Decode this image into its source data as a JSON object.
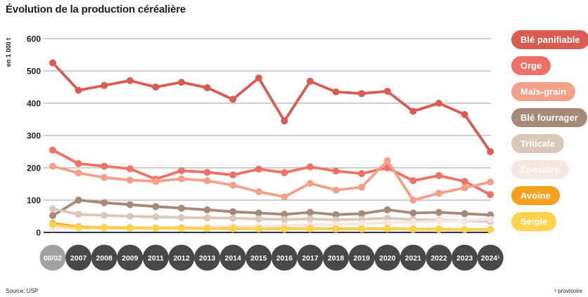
{
  "title": "Évolution de la production céréalière",
  "y_axis": {
    "unit": "en 1 000 t",
    "ticks": [
      0,
      100,
      200,
      300,
      400,
      500,
      600
    ]
  },
  "footer": {
    "source": "Source: USP",
    "note": "¹ provisoire"
  },
  "colors": {
    "grid": "#b5b5b5",
    "zero_axis": "#30325a",
    "tick_text": "#1d1d1b",
    "badge": "#484848",
    "badge_first": "#a2a2a2",
    "badge_text": "#ffffff"
  },
  "chart_data": {
    "type": "line",
    "title": "Évolution de la production céréalière",
    "xlabel": "",
    "ylabel": "en 1 000 t",
    "ylim": [
      0,
      600
    ],
    "grid": "horizontal",
    "legend_position": "right",
    "markers": "circle",
    "categories": [
      "00/02",
      "2007",
      "2008",
      "2009",
      "2011",
      "2012",
      "2013",
      "2014",
      "2015",
      "2016",
      "2017",
      "2018",
      "2019",
      "2020",
      "2021",
      "2022",
      "2023",
      "2024¹"
    ],
    "series": [
      {
        "name": "Blé panifiable",
        "color": "#d85c52",
        "values": [
          525,
          440,
          455,
          470,
          450,
          465,
          448,
          412,
          478,
          345,
          468,
          435,
          430,
          437,
          375,
          400,
          365,
          250
        ]
      },
      {
        "name": "Orge",
        "color": "#ed7165",
        "values": [
          255,
          213,
          205,
          197,
          165,
          191,
          186,
          178,
          196,
          185,
          203,
          190,
          182,
          200,
          160,
          176,
          158,
          117
        ]
      },
      {
        "name": "Maïs-grain",
        "color": "#f3a089",
        "values": [
          205,
          184,
          170,
          162,
          158,
          166,
          160,
          146,
          126,
          110,
          152,
          131,
          140,
          222,
          100,
          121,
          138,
          156
        ]
      },
      {
        "name": "Blé fourrager",
        "color": "#a68976",
        "values": [
          52,
          100,
          92,
          86,
          80,
          75,
          70,
          64,
          60,
          56,
          62,
          55,
          58,
          70,
          60,
          62,
          58,
          54
        ]
      },
      {
        "name": "Triticale",
        "color": "#d9c8b8",
        "values": [
          73,
          56,
          53,
          50,
          48,
          46,
          45,
          44,
          42,
          40,
          42,
          39,
          41,
          44,
          40,
          38,
          36,
          34
        ]
      },
      {
        "name": "Épeautre",
        "color": "#f6e7e1",
        "values": [
          12,
          13,
          14,
          15,
          15,
          16,
          17,
          18,
          19,
          21,
          23,
          25,
          27,
          30,
          32,
          35,
          37,
          40
        ]
      },
      {
        "name": "Avoine",
        "color": "#f8a01e",
        "values": [
          28,
          17,
          15,
          14,
          13,
          13,
          12,
          12,
          11,
          11,
          12,
          11,
          11,
          12,
          10,
          10,
          9,
          9
        ]
      },
      {
        "name": "Seigle",
        "color": "#fcd34a",
        "values": [
          24,
          15,
          14,
          13,
          13,
          12,
          12,
          11,
          11,
          10,
          11,
          10,
          10,
          11,
          9,
          9,
          9,
          8
        ]
      }
    ]
  }
}
